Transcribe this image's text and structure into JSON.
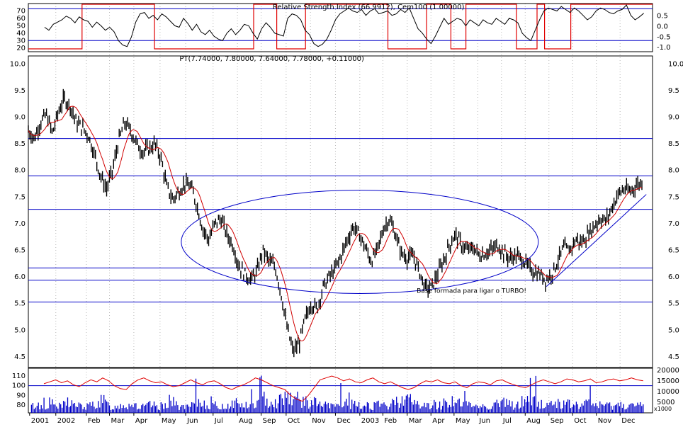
{
  "colors": {
    "background": "#ffffff",
    "frame": "#000000",
    "grid": "#b8b8b8",
    "levels": "#0000c8",
    "annotation": "#0000c8",
    "ma": "#d00000",
    "rsi_cem": "#e00000",
    "price": "#000000",
    "volume_bars": "#0000c8",
    "volume_line": "#e00000"
  },
  "chart_data": [
    {
      "type": "line",
      "panel": "rsi",
      "title": "Relative Strength Index (66.9912), Cem100 (1.00000)",
      "y_left": {
        "ticks": [
          70,
          60,
          50,
          40,
          30,
          20
        ],
        "range": [
          15,
          80
        ]
      },
      "y_right": {
        "ticks": [
          "0.5",
          "0.0",
          "-0.5",
          "-1.0"
        ],
        "range": [
          -1.2,
          1.1
        ]
      },
      "h_lines": [
        73,
        30
      ],
      "series": [
        {
          "label": "RSI",
          "values": [
            48,
            44,
            52,
            55,
            58,
            63,
            60,
            54,
            62,
            58,
            56,
            48,
            55,
            50,
            44,
            48,
            42,
            30,
            24,
            22,
            35,
            55,
            66,
            68,
            60,
            64,
            58,
            66,
            62,
            56,
            50,
            48,
            60,
            53,
            44,
            52,
            42,
            38,
            44,
            36,
            32,
            30,
            40,
            46,
            38,
            44,
            52,
            50,
            40,
            32,
            46,
            54,
            48,
            40,
            38,
            36,
            60,
            66,
            64,
            58,
            44,
            38,
            26,
            22,
            25,
            32,
            44,
            58,
            66,
            70,
            74,
            70,
            68,
            72,
            64,
            70,
            73,
            66,
            68,
            70,
            64,
            66,
            72,
            68,
            74,
            60,
            46,
            40,
            32,
            26,
            36,
            48,
            60,
            52,
            56,
            60,
            58,
            50,
            58,
            54,
            50,
            58,
            54,
            52,
            60,
            56,
            52,
            60,
            58,
            54,
            40,
            34,
            30,
            44,
            58,
            70,
            74,
            72,
            70,
            76,
            72,
            68,
            74,
            70,
            64,
            58,
            62,
            70,
            74,
            72,
            68,
            66,
            70,
            72,
            78,
            64,
            58,
            62,
            67
          ]
        },
        {
          "label": "Cem100",
          "step_states": [
            {
              "from_pct": 0.0,
              "to_pct": 8.6,
              "value": -1
            },
            {
              "from_pct": 8.6,
              "to_pct": 20.2,
              "value": 1
            },
            {
              "from_pct": 20.2,
              "to_pct": 36.1,
              "value": -1
            },
            {
              "from_pct": 36.1,
              "to_pct": 39.8,
              "value": 1
            },
            {
              "from_pct": 39.8,
              "to_pct": 44.4,
              "value": -1
            },
            {
              "from_pct": 44.4,
              "to_pct": 57.6,
              "value": 1
            },
            {
              "from_pct": 57.6,
              "to_pct": 63.8,
              "value": -1
            },
            {
              "from_pct": 63.8,
              "to_pct": 67.7,
              "value": 1
            },
            {
              "from_pct": 67.7,
              "to_pct": 70.1,
              "value": -1
            },
            {
              "from_pct": 70.1,
              "to_pct": 78.2,
              "value": 1
            },
            {
              "from_pct": 78.2,
              "to_pct": 81.5,
              "value": -1
            },
            {
              "from_pct": 81.5,
              "to_pct": 82.7,
              "value": 1
            },
            {
              "from_pct": 82.7,
              "to_pct": 86.9,
              "value": -1
            },
            {
              "from_pct": 86.9,
              "to_pct": 100.0,
              "value": 1
            }
          ]
        }
      ]
    },
    {
      "type": "candlestick",
      "panel": "price",
      "title": "PT(7.74000, 7.80000, 7.64000, 7.78000, +0.11000)",
      "y_ticks": [
        "10.0",
        "9.5",
        "9.0",
        "8.5",
        "8.0",
        "7.5",
        "7.0",
        "6.5",
        "6.0",
        "5.5",
        "5.0",
        "4.5"
      ],
      "y_range": [
        4.3,
        10.15
      ],
      "h_levels": [
        8.6,
        7.9,
        7.27,
        6.17,
        5.94,
        5.53
      ],
      "trendline": {
        "from": {
          "x_pct": 83.0,
          "y": 5.82
        },
        "to": {
          "x_pct": 99.0,
          "y": 7.55
        }
      },
      "ellipse": {
        "center_x_pct": 53.1,
        "center_y": 6.66,
        "radius_x_pct": 28.6,
        "radius_y": 0.97
      },
      "annotation": "Base formada para ligar o TURBO!",
      "close_series": {
        "x_pct_start": 0.0,
        "x_pct_end": 98.3,
        "values": [
          8.75,
          8.6,
          8.9,
          9.05,
          8.7,
          9.1,
          9.35,
          9.2,
          8.9,
          8.8,
          8.65,
          8.3,
          7.9,
          7.65,
          8.0,
          8.55,
          8.9,
          8.75,
          8.5,
          8.35,
          8.4,
          8.5,
          8.25,
          7.7,
          7.45,
          7.6,
          7.75,
          7.7,
          7.35,
          6.9,
          6.7,
          7.0,
          7.1,
          6.8,
          6.6,
          6.2,
          6.05,
          5.95,
          6.1,
          6.5,
          6.3,
          6.2,
          5.7,
          5.05,
          4.6,
          4.75,
          5.2,
          5.5,
          5.4,
          5.8,
          6.0,
          6.15,
          6.4,
          6.7,
          6.95,
          6.8,
          6.55,
          6.3,
          6.5,
          6.9,
          7.1,
          6.8,
          6.45,
          6.35,
          6.4,
          6.1,
          5.8,
          5.8,
          6.05,
          6.3,
          6.6,
          6.8,
          6.6,
          6.5,
          6.55,
          6.4,
          6.45,
          6.5,
          6.6,
          6.45,
          6.35,
          6.4,
          6.35,
          6.2,
          6.1,
          6.05,
          5.95,
          6.05,
          6.3,
          6.55,
          6.5,
          6.7,
          6.65,
          6.8,
          6.95,
          7.1,
          7.05,
          7.3,
          7.55,
          7.65,
          7.6,
          7.72,
          7.78
        ]
      },
      "ma_smoothing": 5
    },
    {
      "type": "bar",
      "panel": "volume",
      "y_left_ticks": [
        "110",
        "100",
        "90",
        "80"
      ],
      "y_left_range": [
        72,
        118
      ],
      "y_right_ticks": [
        "20000",
        "15000",
        "10000",
        "5000"
      ],
      "y_right_range": [
        0,
        21000
      ],
      "unit": "x1000",
      "h_line_left": 100,
      "line_series": [
        102,
        104,
        106,
        103,
        105,
        101,
        99,
        103,
        106,
        104,
        108,
        105,
        100,
        97,
        96,
        102,
        106,
        108,
        105,
        103,
        104,
        101,
        99,
        100,
        103,
        106,
        103,
        101,
        104,
        105,
        102,
        98,
        96,
        99,
        101,
        104,
        108,
        106,
        103,
        100,
        98,
        96,
        90,
        86,
        84,
        90,
        98,
        106,
        108,
        110,
        108,
        105,
        107,
        104,
        103,
        106,
        108,
        104,
        102,
        104,
        101,
        98,
        96,
        98,
        102,
        105,
        104,
        106,
        103,
        102,
        104,
        100,
        98,
        102,
        104,
        103,
        101,
        105,
        106,
        103,
        101,
        99,
        98,
        101,
        104,
        106,
        104,
        102,
        104,
        107,
        106,
        104,
        105,
        107,
        103,
        104,
        106,
        107,
        105,
        106,
        108,
        106,
        105
      ],
      "bar_series": [
        3200,
        4100,
        2600,
        5200,
        3800,
        2900,
        6100,
        4300,
        3500,
        2800,
        3900,
        4800,
        6200,
        3100,
        2700,
        4500,
        3600,
        5100,
        2400,
        3300,
        4100,
        2900,
        3700,
        6800,
        4200,
        3100,
        2600,
        3900,
        5400,
        4700,
        3300,
        3800,
        2900,
        4200,
        5600,
        4100,
        3400,
        3900,
        5300,
        7200,
        6100,
        4800,
        9100,
        8800,
        7300,
        6200,
        4900,
        5600,
        4300,
        3700,
        3200,
        4100,
        5100,
        4600,
        3800,
        3100,
        4400,
        3600,
        3900,
        3200,
        4500,
        5900,
        8400,
        6700,
        4800,
        4100,
        3500,
        4300,
        3800,
        5400,
        6300,
        5200,
        3900,
        3600,
        4200,
        3400,
        3100,
        4000,
        5600,
        4800,
        4100,
        3500,
        6200,
        7100,
        5600,
        4400,
        3900,
        4800,
        5500,
        3900,
        4600,
        3700,
        4100,
        5000,
        4300,
        3800,
        3500,
        4200,
        3900,
        4400,
        3600,
        3300,
        3800
      ]
    }
  ],
  "x_axis": {
    "labels": [
      "2001",
      "2002",
      "Feb",
      "Mar",
      "Apr",
      "May",
      "Jun",
      "Jul",
      "Aug",
      "Sep",
      "Oct",
      "Nov",
      "Dec",
      "2003",
      "Feb",
      "Mar",
      "Apr",
      "May",
      "Jun",
      "Jul",
      "Aug",
      "Sep",
      "Oct",
      "Nov",
      "Dec"
    ],
    "positions_pct": [
      0.2,
      4.4,
      9.3,
      13.0,
      16.9,
      21.1,
      25.2,
      29.6,
      33.5,
      37.3,
      41.3,
      45.2,
      49.2,
      53.1,
      56.8,
      60.7,
      64.5,
      68.2,
      72.0,
      75.8,
      79.6,
      83.4,
      87.2,
      91.0,
      94.8
    ]
  }
}
